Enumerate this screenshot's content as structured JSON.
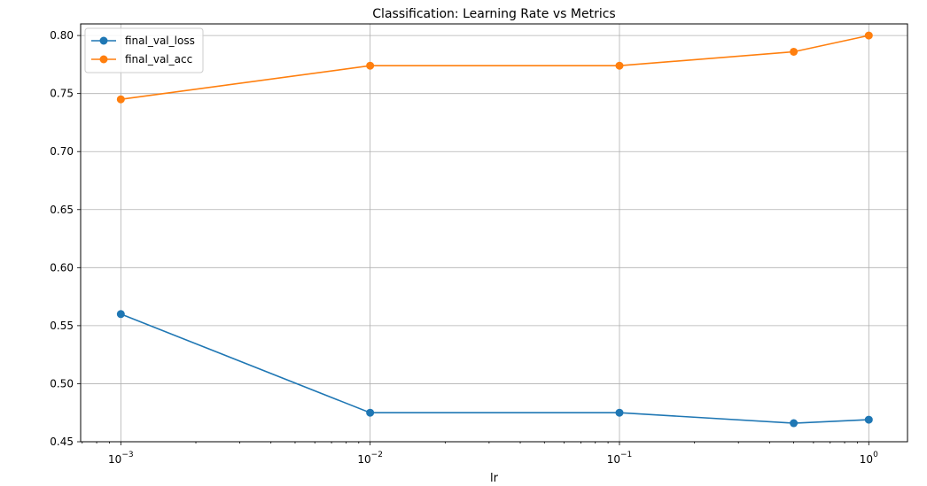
{
  "chart_data": {
    "type": "line",
    "title": "Classification: Learning Rate vs Metrics",
    "xlabel": "lr",
    "ylabel": "",
    "xscale": "log",
    "xlim": [
      0.00069,
      1.43
    ],
    "ylim": [
      0.45,
      0.81
    ],
    "x_major_ticks": [
      {
        "value": 0.001,
        "base": "10",
        "exp": "−3"
      },
      {
        "value": 0.01,
        "base": "10",
        "exp": "−2"
      },
      {
        "value": 0.1,
        "base": "10",
        "exp": "−1"
      },
      {
        "value": 1,
        "base": "10",
        "exp": "0"
      }
    ],
    "y_ticks": [
      {
        "value": 0.45,
        "label": "0.45"
      },
      {
        "value": 0.5,
        "label": "0.50"
      },
      {
        "value": 0.55,
        "label": "0.55"
      },
      {
        "value": 0.6,
        "label": "0.60"
      },
      {
        "value": 0.65,
        "label": "0.65"
      },
      {
        "value": 0.7,
        "label": "0.70"
      },
      {
        "value": 0.75,
        "label": "0.75"
      },
      {
        "value": 0.8,
        "label": "0.80"
      }
    ],
    "grid": true,
    "legend_position": "top-left",
    "x": [
      0.001,
      0.01,
      0.1,
      0.5,
      1.0
    ],
    "series": [
      {
        "name": "final_val_loss",
        "color": "#1f77b4",
        "values": [
          0.56,
          0.475,
          0.475,
          0.466,
          0.469
        ]
      },
      {
        "name": "final_val_acc",
        "color": "#ff7f0e",
        "values": [
          0.745,
          0.774,
          0.774,
          0.786,
          0.8
        ]
      }
    ]
  }
}
